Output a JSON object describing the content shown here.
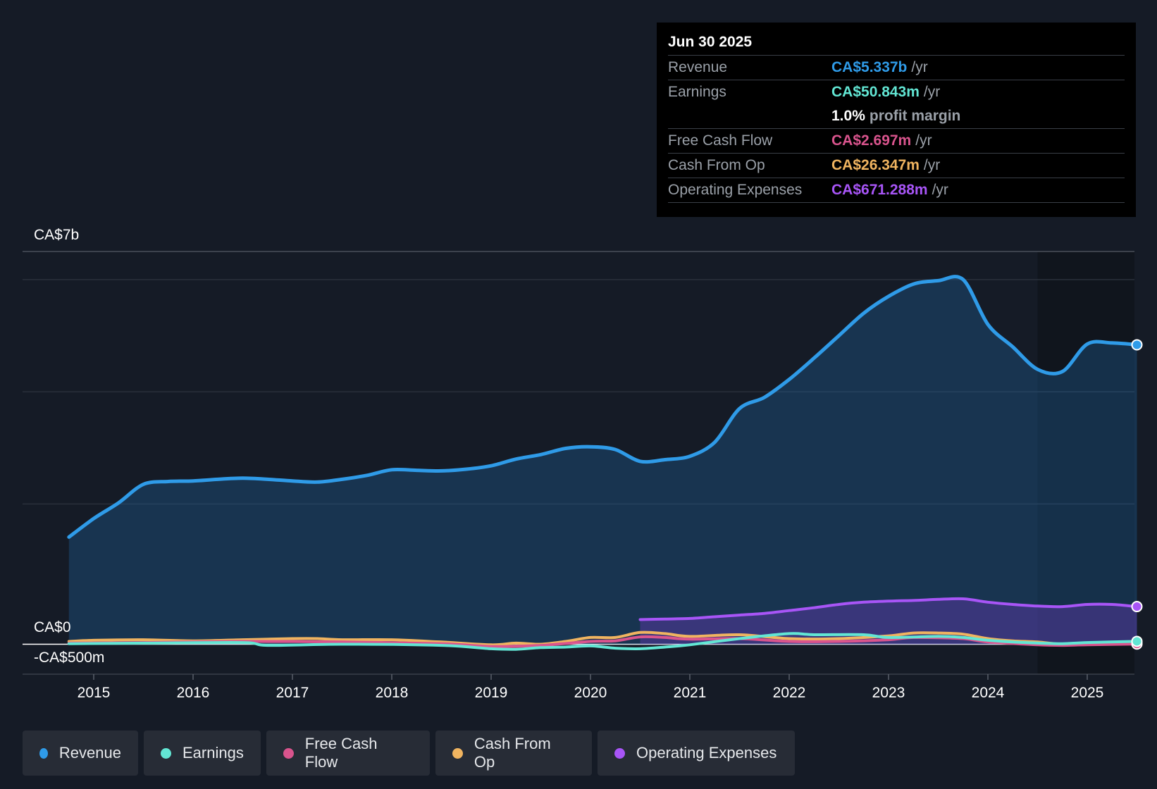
{
  "tooltip": {
    "date": "Jun 30 2025",
    "rows": [
      {
        "label": "Revenue",
        "value": "CA$5.337b",
        "unit": "/yr",
        "color": "#2f9be8"
      },
      {
        "label": "Earnings",
        "value": "CA$50.843m",
        "unit": "/yr",
        "color": "#62e6d4"
      },
      {
        "label": "",
        "value": "1.0%",
        "unit": "profit margin",
        "color": "#ffffff"
      },
      {
        "label": "Free Cash Flow",
        "value": "CA$2.697m",
        "unit": "/yr",
        "color": "#d9548d"
      },
      {
        "label": "Cash From Op",
        "value": "CA$26.347m",
        "unit": "/yr",
        "color": "#f0b460"
      },
      {
        "label": "Operating Expenses",
        "value": "CA$671.288m",
        "unit": "/yr",
        "color": "#a855f7"
      }
    ]
  },
  "legend": [
    {
      "label": "Revenue",
      "color": "#2f9be8"
    },
    {
      "label": "Earnings",
      "color": "#62e6d4"
    },
    {
      "label": "Free Cash Flow",
      "color": "#d9548d"
    },
    {
      "label": "Cash From Op",
      "color": "#f0b460"
    },
    {
      "label": "Operating Expenses",
      "color": "#a855f7"
    }
  ],
  "chart_data": {
    "type": "area",
    "title": "",
    "xlabel": "",
    "ylabel": "",
    "y_axis_labels": {
      "top": "CA$7b",
      "zero": "CA$0",
      "bottom": "-CA$500m"
    },
    "ylim": [
      -0.5,
      7
    ],
    "xlim": [
      2014.75,
      2025.5
    ],
    "units": "CA$ billions",
    "x_ticks": [
      2015,
      2016,
      2017,
      2018,
      2019,
      2020,
      2021,
      2022,
      2023,
      2024,
      2025
    ],
    "x_tick_labels": [
      "2015",
      "2016",
      "2017",
      "2018",
      "2019",
      "2020",
      "2021",
      "2022",
      "2023",
      "2024",
      "2025"
    ],
    "forecast_shade_from": 2024.5,
    "series": [
      {
        "name": "Revenue",
        "color": "#2f9be8",
        "filled": true,
        "x": [
          2014.75,
          2015.0,
          2015.25,
          2015.5,
          2015.75,
          2016.0,
          2016.25,
          2016.5,
          2016.75,
          2017.0,
          2017.25,
          2017.5,
          2017.75,
          2018.0,
          2018.25,
          2018.5,
          2018.75,
          2019.0,
          2019.25,
          2019.5,
          2019.75,
          2020.0,
          2020.25,
          2020.5,
          2020.75,
          2021.0,
          2021.25,
          2021.5,
          2021.75,
          2022.0,
          2022.25,
          2022.5,
          2022.75,
          2023.0,
          2023.25,
          2023.5,
          2023.75,
          2024.0,
          2024.25,
          2024.5,
          2024.75,
          2025.0,
          2025.25,
          2025.5
        ],
        "y": [
          1.91,
          2.24,
          2.52,
          2.85,
          2.9,
          2.91,
          2.94,
          2.96,
          2.94,
          2.91,
          2.89,
          2.94,
          3.01,
          3.11,
          3.1,
          3.09,
          3.12,
          3.18,
          3.3,
          3.38,
          3.49,
          3.52,
          3.47,
          3.26,
          3.29,
          3.35,
          3.6,
          4.2,
          4.4,
          4.72,
          5.1,
          5.5,
          5.9,
          6.2,
          6.42,
          6.48,
          6.5,
          5.7,
          5.3,
          4.9,
          4.86,
          5.35,
          5.37,
          5.337
        ]
      },
      {
        "name": "Operating Expenses",
        "color": "#a855f7",
        "filled": true,
        "x": [
          2020.5,
          2020.75,
          2021.0,
          2021.25,
          2021.5,
          2021.75,
          2022.0,
          2022.25,
          2022.5,
          2022.75,
          2023.0,
          2023.25,
          2023.5,
          2023.75,
          2024.0,
          2024.25,
          2024.5,
          2024.75,
          2025.0,
          2025.25,
          2025.5
        ],
        "y": [
          0.44,
          0.45,
          0.46,
          0.49,
          0.52,
          0.55,
          0.6,
          0.65,
          0.71,
          0.75,
          0.77,
          0.78,
          0.8,
          0.81,
          0.75,
          0.71,
          0.68,
          0.67,
          0.71,
          0.71,
          0.671
        ]
      },
      {
        "name": "Cash From Op",
        "color": "#f0b460",
        "filled": false,
        "x": [
          2014.75,
          2015.0,
          2015.5,
          2016.0,
          2016.5,
          2017.0,
          2017.25,
          2017.5,
          2018.0,
          2018.5,
          2019.0,
          2019.25,
          2019.5,
          2019.75,
          2020.0,
          2020.25,
          2020.5,
          2020.75,
          2021.0,
          2021.5,
          2022.0,
          2022.5,
          2023.0,
          2023.25,
          2023.5,
          2023.75,
          2024.0,
          2024.25,
          2024.5,
          2024.75,
          2025.0,
          2025.5
        ],
        "y": [
          0.05,
          0.07,
          0.08,
          0.06,
          0.08,
          0.1,
          0.1,
          0.08,
          0.08,
          0.04,
          -0.01,
          0.02,
          0.0,
          0.05,
          0.12,
          0.12,
          0.21,
          0.19,
          0.14,
          0.17,
          0.1,
          0.1,
          0.15,
          0.2,
          0.2,
          0.18,
          0.1,
          0.06,
          0.04,
          0.0,
          0.01,
          0.026
        ]
      },
      {
        "name": "Free Cash Flow",
        "color": "#d9548d",
        "filled": false,
        "x": [
          2014.75,
          2015.5,
          2016.5,
          2017.5,
          2018.5,
          2019.0,
          2019.5,
          2020.0,
          2020.25,
          2020.5,
          2020.75,
          2021.0,
          2021.5,
          2022.0,
          2022.5,
          2023.0,
          2023.25,
          2023.75,
          2024.0,
          2024.5,
          2024.75,
          2025.0,
          2025.5
        ],
        "y": [
          0.02,
          0.03,
          0.05,
          0.04,
          0.01,
          -0.04,
          -0.02,
          0.05,
          0.06,
          0.13,
          0.12,
          0.09,
          0.1,
          0.05,
          0.05,
          0.08,
          0.12,
          0.1,
          0.04,
          -0.01,
          -0.02,
          -0.01,
          0.003
        ]
      },
      {
        "name": "Earnings",
        "color": "#62e6d4",
        "filled": false,
        "x": [
          2014.75,
          2015.5,
          2016.5,
          2016.75,
          2017.5,
          2018.5,
          2019.0,
          2019.25,
          2019.5,
          2019.75,
          2020.0,
          2020.25,
          2020.5,
          2020.75,
          2021.0,
          2021.5,
          2022.0,
          2022.25,
          2022.75,
          2023.0,
          2023.5,
          2023.75,
          2024.0,
          2024.25,
          2024.5,
          2024.75,
          2025.0,
          2025.5
        ],
        "y": [
          0.01,
          0.02,
          0.03,
          -0.02,
          0.0,
          -0.02,
          -0.08,
          -0.09,
          -0.06,
          -0.05,
          -0.03,
          -0.07,
          -0.08,
          -0.05,
          -0.01,
          0.1,
          0.19,
          0.17,
          0.17,
          0.12,
          0.14,
          0.12,
          0.07,
          0.04,
          0.02,
          0.01,
          0.03,
          0.051
        ]
      }
    ]
  }
}
